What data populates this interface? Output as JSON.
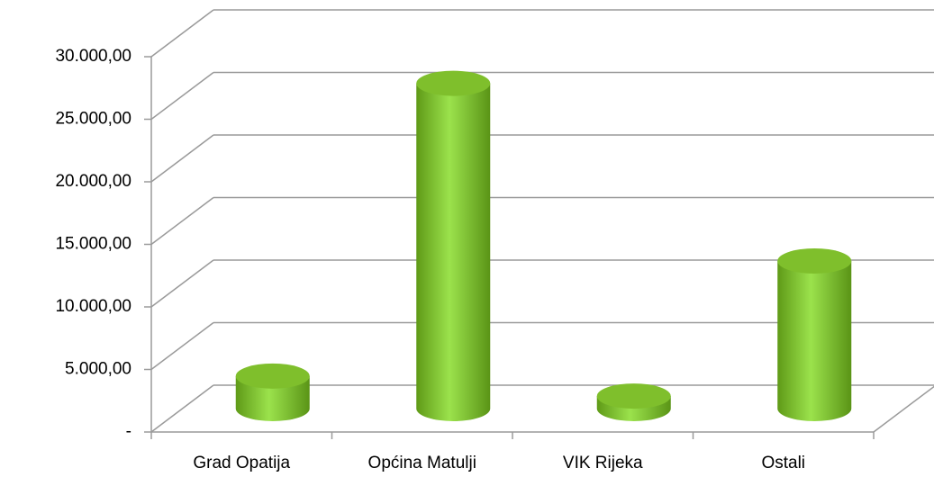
{
  "chart_data": {
    "type": "bar3d",
    "categories": [
      "Grad Opatija",
      "Općina Matulji",
      "VIK Rijeka",
      "Ostali"
    ],
    "values": [
      2600,
      26000,
      1000,
      11800
    ],
    "color": "#8fd33f",
    "ylim": [
      0,
      30000
    ],
    "yticks": [
      {
        "value": 0,
        "label": "-"
      },
      {
        "value": 5000,
        "label": "5.000,00"
      },
      {
        "value": 10000,
        "label": "10.000,00"
      },
      {
        "value": 15000,
        "label": "15.000,00"
      },
      {
        "value": 20000,
        "label": "20.000,00"
      },
      {
        "value": 25000,
        "label": "25.000,00"
      },
      {
        "value": 30000,
        "label": "30.000,00"
      }
    ],
    "grid": true
  }
}
